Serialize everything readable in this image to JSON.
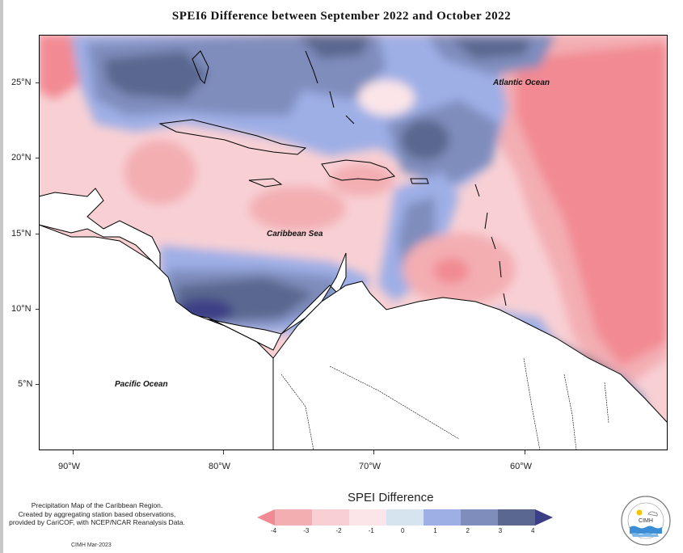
{
  "title": "SPEI6 Difference between September 2022 and October 2022",
  "map": {
    "type": "contour",
    "lat_labels": [
      "25°N",
      "20°N",
      "15°N",
      "10°N",
      "5°N"
    ],
    "lon_labels": [
      "90°W",
      "80°W",
      "70°W",
      "60°W"
    ],
    "ocean_labels": {
      "atlantic": "Atlantic Ocean",
      "caribbean": "Caribbean Sea",
      "pacific": "Pacific Ocean"
    }
  },
  "legend": {
    "title": "SPEI Difference",
    "ticks": [
      "-4",
      "-3",
      "-2",
      "-1",
      "0",
      "1",
      "2",
      "3",
      "4"
    ],
    "colors": [
      "#f28a93",
      "#f3aeb2",
      "#f8d0d4",
      "#fbe5e8",
      "#d6e4ef",
      "#9eafe6",
      "#7f8dbd",
      "#5a678f",
      "#3c3f86"
    ]
  },
  "note": {
    "line1": "Precipitation Map of the Caribbean Region.",
    "line2": "Created by aggregating station based observations,",
    "line3": "provided by CariCOF, with NCEP/NCAR Reanalysis Data."
  },
  "credit": "CIMH Mar-2023",
  "logo": {
    "text": "CIMH"
  }
}
